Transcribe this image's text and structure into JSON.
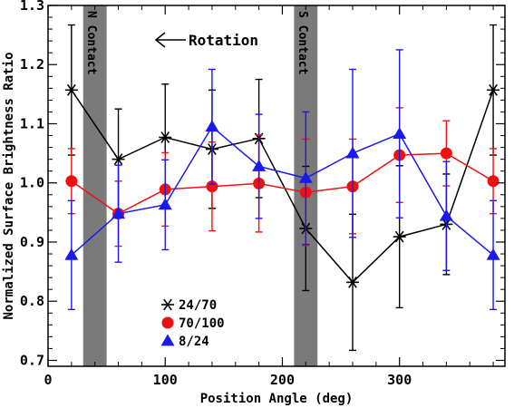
{
  "chart_data": {
    "type": "line",
    "title": "",
    "xlabel": "Position Angle (deg)",
    "ylabel": "Normalized Surface Brightness Ratio",
    "xlim": [
      0,
      390
    ],
    "ylim": [
      0.69,
      1.3
    ],
    "xticks": [
      "0",
      "100",
      "200",
      "300"
    ],
    "yticks": [
      "0.7",
      "0.8",
      "0.9",
      "1.0",
      "1.1",
      "1.2",
      "1.3"
    ],
    "grid": false,
    "legend_placement": "bottom-left",
    "bands": [
      {
        "label": "N Contact",
        "x_range": [
          30,
          50
        ],
        "color": "#7a7a7a"
      },
      {
        "label": "S Contact",
        "x_range": [
          210,
          230
        ],
        "color": "#7a7a7a"
      }
    ],
    "annotation": {
      "text": "Rotation",
      "arrow": "left"
    },
    "series": [
      {
        "name": "24/70",
        "color": "#000000",
        "marker": "asterisk",
        "x": [
          20,
          60,
          100,
          140,
          180,
          220,
          260,
          300,
          340,
          380
        ],
        "y": [
          1.157,
          1.04,
          1.077,
          1.057,
          1.075,
          0.923,
          0.832,
          0.909,
          0.93,
          1.157
        ],
        "err": [
          0.11,
          0.085,
          0.09,
          0.1,
          0.1,
          0.105,
          0.115,
          0.12,
          0.085,
          0.11
        ]
      },
      {
        "name": "70/100",
        "color": "#ee1111",
        "marker": "circle",
        "x": [
          20,
          60,
          100,
          140,
          180,
          220,
          260,
          300,
          340,
          380
        ],
        "y": [
          1.003,
          0.948,
          0.989,
          0.994,
          0.999,
          0.984,
          0.994,
          1.047,
          1.05,
          1.003
        ],
        "err": [
          0.055,
          0.055,
          0.062,
          0.075,
          0.082,
          0.09,
          0.08,
          0.08,
          0.055,
          0.055
        ]
      },
      {
        "name": "8/24",
        "color": "#1a1aee",
        "marker": "triangle",
        "x": [
          20,
          60,
          100,
          140,
          180,
          220,
          260,
          300,
          340,
          380
        ],
        "y": [
          0.878,
          0.948,
          0.963,
          1.095,
          1.028,
          1.008,
          1.05,
          1.083,
          0.944,
          0.878
        ],
        "err": [
          0.092,
          0.082,
          0.076,
          0.097,
          0.088,
          0.112,
          0.142,
          0.142,
          0.092,
          0.092
        ]
      }
    ]
  }
}
